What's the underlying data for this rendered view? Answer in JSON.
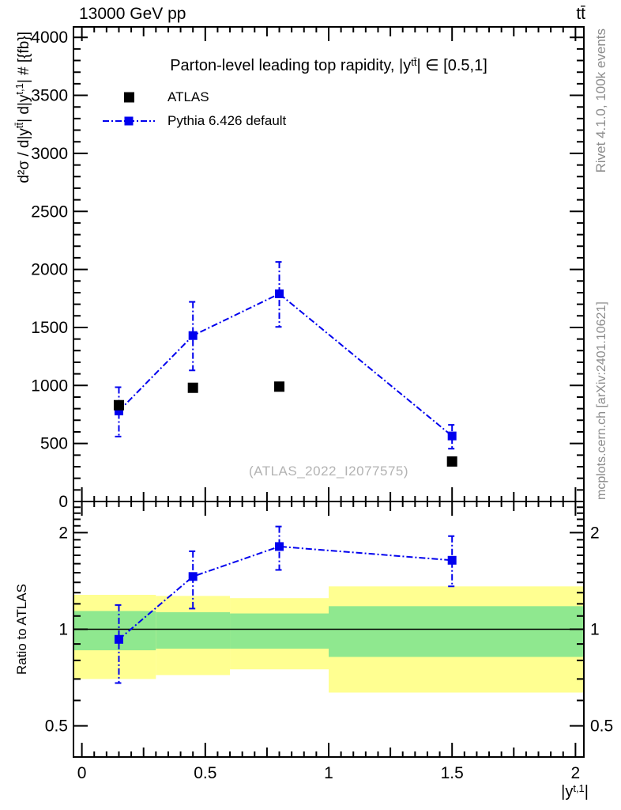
{
  "header": {
    "left": "13000 GeV pp",
    "right": "tt̄"
  },
  "title_parts": {
    "pre": "Parton-level leading top rapidity,  |y",
    "sup": "tt̄",
    "post": "| ∈ [0.5,1]"
  },
  "legend": {
    "position": "top-left",
    "entries": [
      {
        "label": "ATLAS",
        "type": "data"
      },
      {
        "label": "Pythia 6.426 default",
        "type": "mc"
      }
    ]
  },
  "axis_labels": {
    "y_main_parts": [
      {
        "t": "d²σ / d|y"
      },
      {
        "t": "tt̄",
        "sup": true
      },
      {
        "t": "| d|y"
      },
      {
        "t": "t,1",
        "sup": true
      },
      {
        "t": "| # [{fb}]"
      }
    ],
    "x_parts": {
      "pre": "|y",
      "sup": "t,1",
      "post": "|"
    },
    "ratio": "Ratio to ATLAS"
  },
  "side_notes": {
    "top": "Rivet 4.1.0,  100k events",
    "bottom": "mcplots.cern.ch [arXiv:2401.10621]"
  },
  "watermark": "(ATLAS_2022_I2077575)",
  "colors": {
    "axis": "#000000",
    "data_black": "#000000",
    "mc_blue": "#0000ee",
    "band_yellow": "#ffff91",
    "band_green": "#8fe88f",
    "side_text_gray": "#8c8c8c",
    "watermark_gray": "#b3b3b3"
  },
  "chart_data": {
    "type": "line",
    "xlim": [
      -0.034,
      2.034
    ],
    "bin_edges": [
      0,
      0.3,
      0.6,
      1.0,
      2.0
    ],
    "x_centers": [
      0.15,
      0.45,
      0.8,
      1.5
    ],
    "xticks": {
      "major": [
        0,
        0.5,
        1,
        1.5,
        2
      ],
      "labels": [
        "0",
        "0.5",
        "1",
        "1.5",
        "2"
      ],
      "minor_step": 0.05,
      "mid_step": 0.25
    },
    "panels": [
      {
        "name": "main",
        "yscale": "linear",
        "ylim": [
          0,
          4090
        ],
        "yticks": {
          "major": [
            0,
            500,
            1000,
            1500,
            2000,
            2500,
            3000,
            3500,
            4000
          ],
          "labels": [
            "0",
            "500",
            "1000",
            "1500",
            "2000",
            "2500",
            "3000",
            "3500",
            "4000"
          ],
          "minor_step": 100
        },
        "series": [
          {
            "name": "ATLAS",
            "marker": "square",
            "marker_size": 13,
            "color": "#000000",
            "line": "none",
            "y": [
              830,
              980,
              990,
              345
            ]
          },
          {
            "name": "Pythia 6.426 default",
            "marker": "square",
            "marker_size": 11,
            "color": "#0000ee",
            "line": "dashdot",
            "y": [
              780,
              1430,
              1790,
              565
            ],
            "yerr_lo": [
              560,
              1130,
              1505,
              455
            ],
            "yerr_hi": [
              985,
              1720,
              2065,
              660
            ]
          }
        ]
      },
      {
        "name": "ratio",
        "yscale": "log",
        "ylim": [
          0.4,
          2.5
        ],
        "yticks": {
          "major": [
            0.5,
            1,
            2
          ],
          "labels": [
            "0.5",
            "1",
            "2"
          ],
          "minor": [
            0.6,
            0.7,
            0.8,
            0.9,
            1.1,
            1.2,
            1.3,
            1.4,
            1.5,
            1.6,
            1.7,
            1.8,
            1.9,
            2.1,
            2.2,
            2.3,
            2.4
          ]
        },
        "reference_line": 1,
        "bands": {
          "yellow": [
            [
              0.7,
              1.28
            ],
            [
              0.72,
              1.27
            ],
            [
              0.75,
              1.25
            ],
            [
              0.635,
              1.36
            ]
          ],
          "green": [
            [
              0.86,
              1.14
            ],
            [
              0.87,
              1.13
            ],
            [
              0.87,
              1.12
            ],
            [
              0.82,
              1.18
            ]
          ]
        },
        "series": [
          {
            "name": "Pythia/ATLAS",
            "marker": "square",
            "marker_size": 11,
            "color": "#0000ee",
            "line": "dashdot",
            "y": [
              0.93,
              1.46,
              1.81,
              1.64
            ],
            "yerr_lo": [
              0.68,
              1.16,
              1.53,
              1.36
            ],
            "yerr_hi": [
              1.19,
              1.75,
              2.09,
              1.95
            ]
          }
        ]
      }
    ]
  }
}
